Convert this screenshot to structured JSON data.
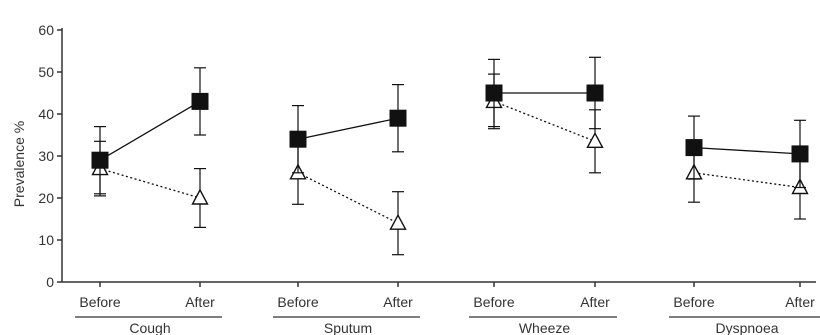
{
  "chart_data": {
    "type": "line",
    "ylabel": "Prevalence %",
    "xlabel": "",
    "ylim": [
      0,
      60
    ],
    "yticks": [
      0,
      10,
      20,
      30,
      40,
      50,
      60
    ],
    "grid": false,
    "legend": "none",
    "time_points": [
      "Before",
      "After"
    ],
    "groups": [
      {
        "name": "Cough",
        "time_labels": [
          "Before",
          "After"
        ]
      },
      {
        "name": "Sputum",
        "time_labels": [
          "Before",
          "After"
        ]
      },
      {
        "name": "Wheeze",
        "time_labels": [
          "Before",
          "After"
        ]
      },
      {
        "name": "Dyspnoea",
        "time_labels": [
          "Before",
          "After"
        ]
      }
    ],
    "series": [
      {
        "marker": "filled-square",
        "line_style": "solid",
        "color": "#111111",
        "values": [
          [
            29,
            43
          ],
          [
            34,
            39
          ],
          [
            45,
            45
          ],
          [
            32,
            30.5
          ]
        ],
        "errors": [
          [
            8,
            8
          ],
          [
            8,
            8
          ],
          [
            8,
            8.5
          ],
          [
            7.5,
            8
          ]
        ]
      },
      {
        "marker": "open-triangle",
        "line_style": "dotted",
        "color": "#111111",
        "values": [
          [
            27,
            20
          ],
          [
            26,
            14
          ],
          [
            43,
            33.5
          ],
          [
            26,
            22.5
          ]
        ],
        "errors": [
          [
            6.5,
            7
          ],
          [
            7.5,
            7.5
          ],
          [
            6.5,
            7.5
          ],
          [
            7,
            7.5
          ]
        ]
      }
    ]
  }
}
